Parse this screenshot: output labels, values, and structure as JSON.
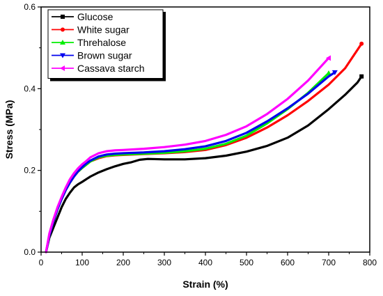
{
  "chart_data": {
    "type": "line",
    "title": "",
    "xlabel": "Strain (%)",
    "ylabel": "Stress (MPa)",
    "xlim": [
      0,
      800
    ],
    "ylim": [
      0,
      0.6
    ],
    "x_ticks": [
      0,
      100,
      200,
      300,
      400,
      500,
      600,
      700,
      800
    ],
    "y_ticks": [
      0.0,
      0.2,
      0.4,
      0.6
    ],
    "x_tick_labels": [
      "0",
      "100",
      "200",
      "300",
      "400",
      "500",
      "600",
      "700",
      "800"
    ],
    "y_tick_labels": [
      "0.0",
      "0.2",
      "0.4",
      "0.6"
    ],
    "grid": false,
    "legend_position": "top-left",
    "series": [
      {
        "name": "Glucose",
        "color": "#000000",
        "marker": "square",
        "x": [
          12,
          20,
          30,
          40,
          50,
          60,
          70,
          80,
          90,
          100,
          120,
          140,
          160,
          180,
          200,
          220,
          240,
          260,
          300,
          350,
          400,
          450,
          500,
          550,
          600,
          650,
          700,
          740,
          770,
          780
        ],
        "y": [
          0.0,
          0.035,
          0.06,
          0.085,
          0.11,
          0.13,
          0.145,
          0.158,
          0.166,
          0.172,
          0.185,
          0.195,
          0.203,
          0.21,
          0.216,
          0.22,
          0.226,
          0.228,
          0.227,
          0.227,
          0.23,
          0.236,
          0.246,
          0.26,
          0.28,
          0.31,
          0.35,
          0.385,
          0.415,
          0.43
        ]
      },
      {
        "name": "White sugar",
        "color": "#ff0000",
        "marker": "circle",
        "x": [
          12,
          20,
          30,
          40,
          50,
          60,
          70,
          80,
          90,
          100,
          110,
          120,
          140,
          160,
          180,
          200,
          250,
          300,
          350,
          400,
          450,
          500,
          550,
          600,
          650,
          700,
          740,
          770,
          780
        ],
        "y": [
          0.0,
          0.04,
          0.075,
          0.105,
          0.13,
          0.152,
          0.17,
          0.185,
          0.197,
          0.206,
          0.214,
          0.222,
          0.23,
          0.235,
          0.237,
          0.238,
          0.24,
          0.242,
          0.245,
          0.25,
          0.262,
          0.28,
          0.305,
          0.335,
          0.37,
          0.41,
          0.45,
          0.495,
          0.51
        ]
      },
      {
        "name": "Threhalose",
        "color": "#00ee00",
        "marker": "triangle-up",
        "x": [
          12,
          20,
          30,
          40,
          50,
          60,
          70,
          80,
          90,
          100,
          110,
          120,
          140,
          160,
          180,
          200,
          250,
          300,
          350,
          400,
          450,
          500,
          550,
          600,
          650,
          700
        ],
        "y": [
          0.0,
          0.04,
          0.075,
          0.105,
          0.13,
          0.152,
          0.17,
          0.185,
          0.197,
          0.206,
          0.214,
          0.222,
          0.232,
          0.236,
          0.238,
          0.239,
          0.241,
          0.243,
          0.247,
          0.253,
          0.265,
          0.285,
          0.315,
          0.35,
          0.39,
          0.438
        ]
      },
      {
        "name": "Brown sugar",
        "color": "#0000ee",
        "marker": "triangle-down",
        "x": [
          12,
          20,
          30,
          40,
          50,
          60,
          70,
          80,
          90,
          100,
          110,
          120,
          140,
          160,
          180,
          200,
          250,
          300,
          350,
          400,
          450,
          500,
          550,
          600,
          650,
          700,
          715
        ],
        "y": [
          0.0,
          0.04,
          0.075,
          0.105,
          0.13,
          0.152,
          0.17,
          0.185,
          0.198,
          0.208,
          0.217,
          0.224,
          0.234,
          0.239,
          0.241,
          0.242,
          0.244,
          0.247,
          0.252,
          0.259,
          0.272,
          0.292,
          0.32,
          0.352,
          0.388,
          0.43,
          0.44
        ]
      },
      {
        "name": "Cassava starch",
        "color": "#ff00ff",
        "marker": "triangle-left",
        "x": [
          12,
          20,
          30,
          40,
          50,
          60,
          70,
          80,
          90,
          100,
          110,
          120,
          140,
          160,
          180,
          200,
          250,
          300,
          350,
          400,
          450,
          500,
          550,
          600,
          650,
          700
        ],
        "y": [
          0.0,
          0.045,
          0.08,
          0.11,
          0.135,
          0.158,
          0.178,
          0.193,
          0.205,
          0.215,
          0.223,
          0.232,
          0.242,
          0.247,
          0.249,
          0.25,
          0.253,
          0.257,
          0.263,
          0.272,
          0.287,
          0.308,
          0.338,
          0.375,
          0.42,
          0.475
        ]
      }
    ]
  }
}
